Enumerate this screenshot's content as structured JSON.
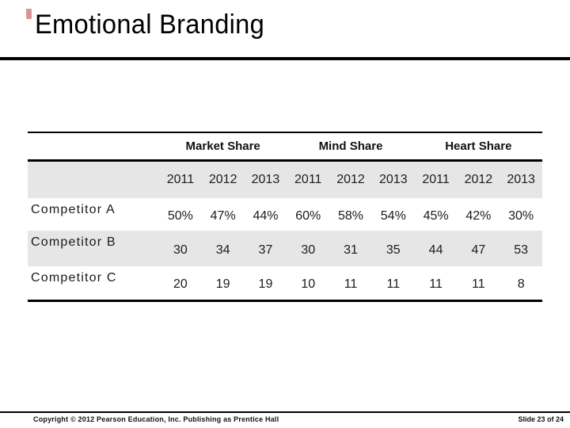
{
  "title": "Emotional Branding",
  "colors": {
    "band": "#e6e6e6",
    "accent": "#c0504d",
    "line": "#000000"
  },
  "table": {
    "group_headers": [
      "Market Share",
      "Mind Share",
      "Heart Share"
    ],
    "year_headers": [
      "2011",
      "2012",
      "2013",
      "2011",
      "2012",
      "2013",
      "2011",
      "2012",
      "2013"
    ],
    "rows": [
      {
        "label": "Competitor A",
        "values": [
          "50%",
          "47%",
          "44%",
          "60%",
          "58%",
          "54%",
          "45%",
          "42%",
          "30%"
        ]
      },
      {
        "label": "Competitor B",
        "values": [
          "30",
          "34",
          "37",
          "30",
          "31",
          "35",
          "44",
          "47",
          "53"
        ]
      },
      {
        "label": "Competitor C",
        "values": [
          "20",
          "19",
          "19",
          "10",
          "11",
          "11",
          "11",
          "11",
          "8"
        ]
      }
    ]
  },
  "footer": {
    "copyright": "Copyright © 2012 Pearson Education, Inc. Publishing as Prentice Hall",
    "slide_number": "Slide 23 of 24"
  }
}
